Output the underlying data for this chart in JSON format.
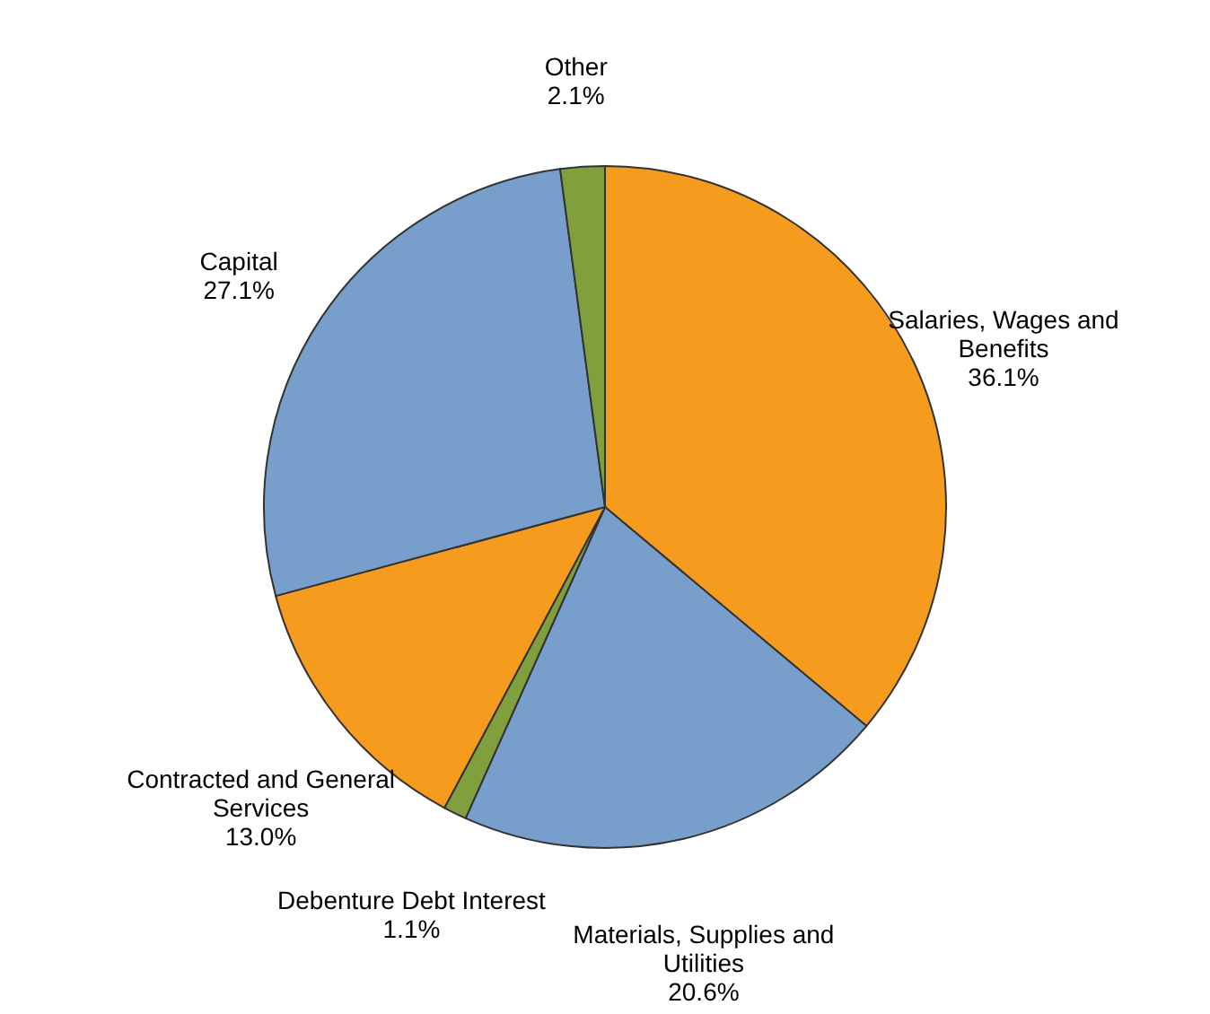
{
  "chart_data": {
    "type": "pie",
    "categories": [
      "Salaries, Wages and Benefits",
      "Materials, Supplies and Utilities",
      "Debenture Debt Interest",
      "Contracted and General Services",
      "Capital",
      "Other"
    ],
    "values": [
      36.1,
      20.6,
      1.1,
      13.0,
      27.1,
      2.1
    ],
    "value_labels": [
      "36.1%",
      "20.6%",
      "1.1%",
      "13.0%",
      "27.1%",
      "2.1%"
    ],
    "colors": [
      "#f59c1f",
      "#789fcb",
      "#7fa03c",
      "#f59c1f",
      "#789fcb",
      "#7fa03c"
    ],
    "legend": false
  }
}
